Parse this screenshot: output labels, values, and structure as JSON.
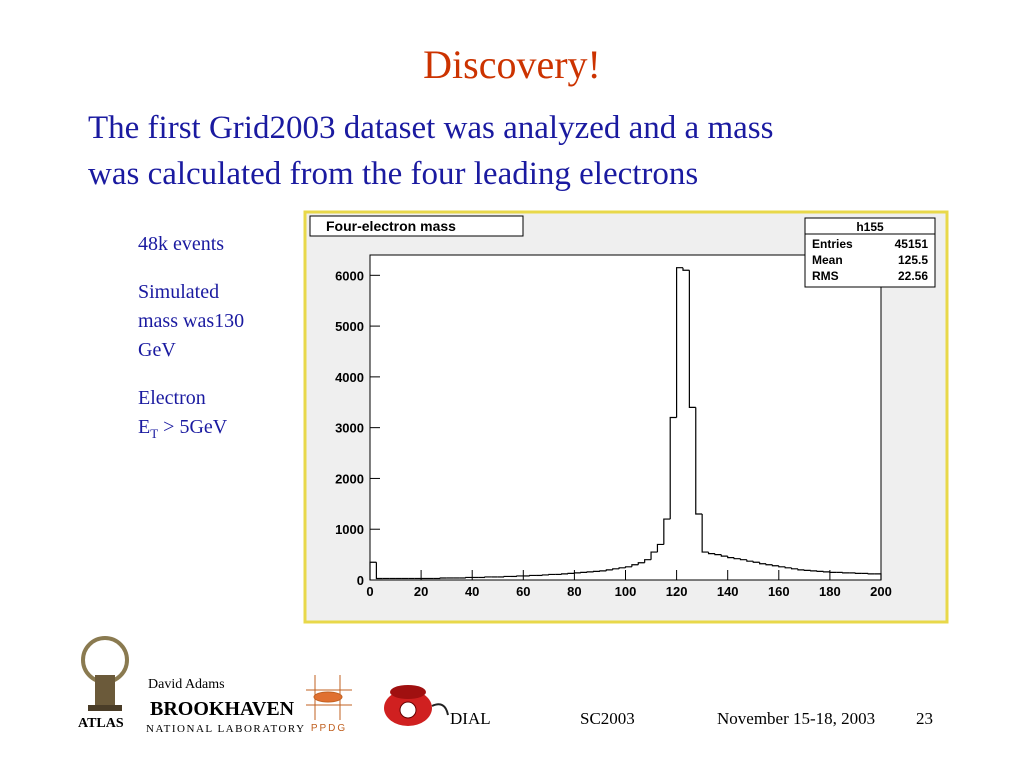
{
  "slide": {
    "title": "Discovery!",
    "lines": [
      "The first Grid2003 dataset was analyzed and a mass",
      "was calculated from the four leading electrons"
    ],
    "notes": [
      [
        "48k events"
      ],
      [
        "Simulated",
        "mass was130",
        "GeV"
      ],
      [
        "Electron"
      ]
    ],
    "et": {
      "base": "E",
      "sub": "T",
      "rest": "> 5GeV"
    },
    "footer": {
      "author": "David Adams",
      "atlas": "ATLAS",
      "bnl": "BROOKHAVEN",
      "bnl_sub": "NATIONAL LABORATORY",
      "ppdg": "PPDG",
      "project": "DIAL",
      "event": "SC2003",
      "date": "November 15-18, 2003",
      "page": "23"
    }
  },
  "chart_data": {
    "type": "histogram",
    "title": "Four-electron mass",
    "color": "#000000",
    "bins": [
      0,
      2.5,
      5,
      7.5,
      10,
      12.5,
      15,
      17.5,
      20,
      22.5,
      25,
      27.5,
      30,
      32.5,
      35,
      37.5,
      40,
      42.5,
      45,
      47.5,
      50,
      52.5,
      55,
      57.5,
      60,
      62.5,
      65,
      67.5,
      70,
      72.5,
      75,
      77.5,
      80,
      82.5,
      85,
      87.5,
      90,
      92.5,
      95,
      97.5,
      100,
      102.5,
      105,
      107.5,
      110,
      112.5,
      115,
      117.5,
      120,
      122.5,
      125,
      127.5,
      130,
      132.5,
      135,
      137.5,
      140,
      142.5,
      145,
      147.5,
      150,
      152.5,
      155,
      157.5,
      160,
      162.5,
      165,
      167.5,
      170,
      172.5,
      175,
      177.5,
      180,
      182.5,
      185,
      187.5,
      190,
      192.5,
      195,
      197.5,
      200
    ],
    "values": [
      350,
      30,
      30,
      30,
      30,
      30,
      30,
      30,
      30,
      30,
      30,
      40,
      40,
      40,
      40,
      50,
      50,
      50,
      60,
      60,
      60,
      70,
      70,
      80,
      80,
      90,
      90,
      100,
      110,
      110,
      120,
      130,
      140,
      150,
      160,
      170,
      180,
      200,
      220,
      240,
      260,
      300,
      340,
      400,
      550,
      700,
      1200,
      3200,
      6150,
      6100,
      3400,
      1300,
      550,
      520,
      500,
      470,
      440,
      420,
      400,
      370,
      350,
      320,
      300,
      280,
      260,
      240,
      220,
      200,
      190,
      180,
      170,
      160,
      150,
      150,
      140,
      140,
      130,
      130,
      120,
      120
    ],
    "xlim": [
      0,
      200
    ],
    "xticks": [
      0,
      20,
      40,
      60,
      80,
      100,
      120,
      140,
      160,
      180,
      200
    ],
    "ylim": [
      0,
      6400
    ],
    "yticks": [
      0,
      1000,
      2000,
      3000,
      4000,
      5000,
      6000
    ],
    "stats": {
      "name": "h155",
      "rows": [
        [
          "Entries",
          45151
        ],
        [
          "Mean",
          125.5
        ],
        [
          "RMS",
          22.56
        ]
      ]
    }
  }
}
